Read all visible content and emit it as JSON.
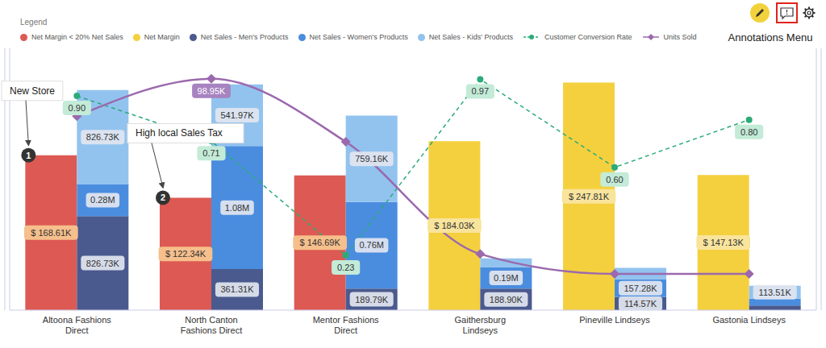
{
  "menu": {
    "label": "Annotations Menu"
  },
  "chart_data": {
    "type": "combo",
    "legend_title": "Legend",
    "legend": "top-left",
    "stacked": true,
    "data_labels": true,
    "tick_labels": "x",
    "categories": [
      "Altoona Fashions Direct",
      "North Canton Fashions Direct",
      "Mentor Fashions Direct",
      "Gaithersburg Lindseys",
      "Pineville Lindseys",
      "Gastonia Lindseys"
    ],
    "ylim": [
      0,
      2300000
    ],
    "y2lim": [
      0,
      285000
    ],
    "y3lim": [
      0,
      1.1
    ],
    "y4lim": [
      0,
      112000
    ],
    "series": [
      {
        "name": "Net Margin < 20% Net Sales",
        "type": "bar",
        "axis": "y2",
        "color": "#dc5a53",
        "values": [
          168610,
          122340,
          146690,
          null,
          null,
          null
        ],
        "value_labels": [
          "$ 168.61K",
          "$ 122.34K",
          "$ 146.69K",
          null,
          null,
          null
        ]
      },
      {
        "name": "Net Margin",
        "type": "bar",
        "axis": "y2",
        "color": "#f4d03f",
        "values": [
          null,
          null,
          null,
          184030,
          247810,
          147130
        ],
        "value_labels": [
          null,
          null,
          null,
          "$ 184.03K",
          "$ 247.81K",
          "$ 147.13K"
        ]
      },
      {
        "name": "Net Sales - Men's Products",
        "type": "bar",
        "axis": "y",
        "color": "#4a5a8e",
        "values": [
          826730,
          361310,
          189790,
          188900,
          114570,
          40000
        ],
        "value_labels": [
          "826.73K",
          "361.31K",
          "189.79K",
          "188.90K",
          "114.57K",
          null
        ]
      },
      {
        "name": "Net Sales - Women's Products",
        "type": "bar",
        "axis": "y",
        "color": "#4a8ddf",
        "values": [
          280000,
          1080000,
          760000,
          190000,
          157280,
          60000
        ],
        "value_labels": [
          "0.28M",
          "1.08M",
          "0.76M",
          "0.19M",
          "157.28K",
          null
        ]
      },
      {
        "name": "Net Sales - Kids' Products",
        "type": "bar",
        "axis": "y",
        "color": "#92c3ef",
        "values": [
          826730,
          541970,
          759160,
          76000,
          100000,
          113510
        ],
        "value_labels": [
          "826.73K",
          "541.97K",
          "759.16K",
          null,
          null,
          "113.51K"
        ]
      },
      {
        "name": "Customer Conversion Rate",
        "type": "line",
        "axis": "y3",
        "color": "#2bab78",
        "marker": "circle",
        "line_style": "dashed",
        "values": [
          0.9,
          0.71,
          0.23,
          0.97,
          0.6,
          0.8
        ],
        "value_labels": [
          "0.90",
          "0.71",
          "0.23",
          "0.97",
          "0.60",
          "0.80"
        ]
      },
      {
        "name": "Units Sold",
        "type": "line",
        "axis": "y4",
        "color": "#9b69ad",
        "marker": "diamond",
        "line_style": "solid",
        "values": [
          83000,
          98950,
          72000,
          24000,
          15500,
          15500
        ],
        "value_labels": [
          null,
          "98.95K",
          null,
          null,
          null,
          null
        ]
      }
    ],
    "annotations": [
      {
        "label": "1",
        "text": "New Store",
        "category": "Altoona Fashions Direct"
      },
      {
        "label": "2",
        "text": "High local Sales Tax",
        "category": "North Canton Fashions Direct"
      }
    ]
  }
}
